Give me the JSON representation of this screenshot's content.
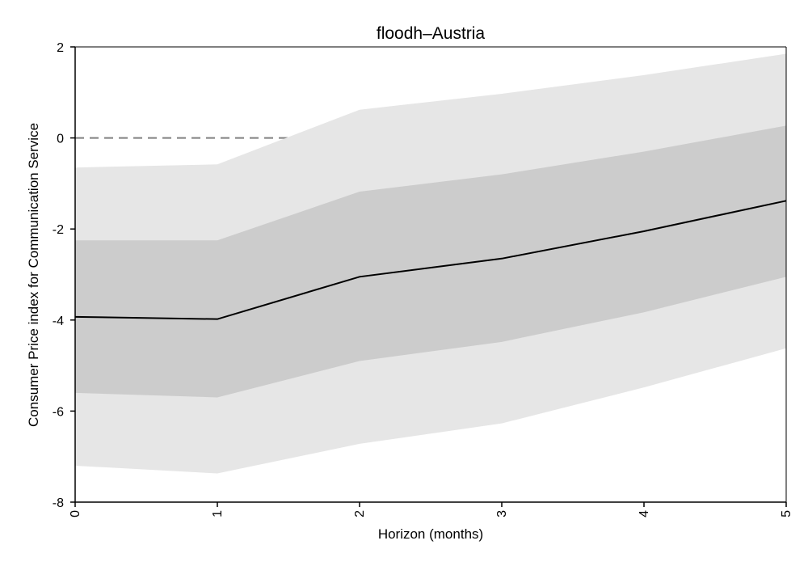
{
  "chart_data": {
    "type": "line",
    "title": "floodh–Austria",
    "xlabel": "Horizon (months)",
    "ylabel": "Consumer Price index for Communication Service",
    "x": [
      0,
      1,
      2,
      3,
      4,
      5
    ],
    "xlim": [
      0,
      5
    ],
    "ylim": [
      -8,
      2
    ],
    "xticks": [
      "0",
      "1",
      "2",
      "3",
      "4",
      "5"
    ],
    "yticks": [
      -8,
      -6,
      -4,
      -2,
      0,
      2
    ],
    "grid": false,
    "reference_line": {
      "y": 0,
      "style": "dashed",
      "color": "#808080"
    },
    "series": [
      {
        "values": [
          -3.93,
          -3.98,
          -3.05,
          -2.65,
          -2.05,
          -1.38
        ],
        "color": "#000000"
      }
    ],
    "bands": [
      {
        "lower": [
          -7.2,
          -7.37,
          -6.72,
          -6.27,
          -5.48,
          -4.62
        ],
        "upper": [
          -0.65,
          -0.58,
          0.62,
          0.97,
          1.38,
          1.85
        ],
        "color": "#e6e6e6"
      },
      {
        "lower": [
          -5.6,
          -5.7,
          -4.9,
          -4.48,
          -3.83,
          -3.05
        ],
        "upper": [
          -2.25,
          -2.25,
          -1.18,
          -0.8,
          -0.3,
          0.27
        ],
        "color": "#cccccc"
      }
    ]
  }
}
